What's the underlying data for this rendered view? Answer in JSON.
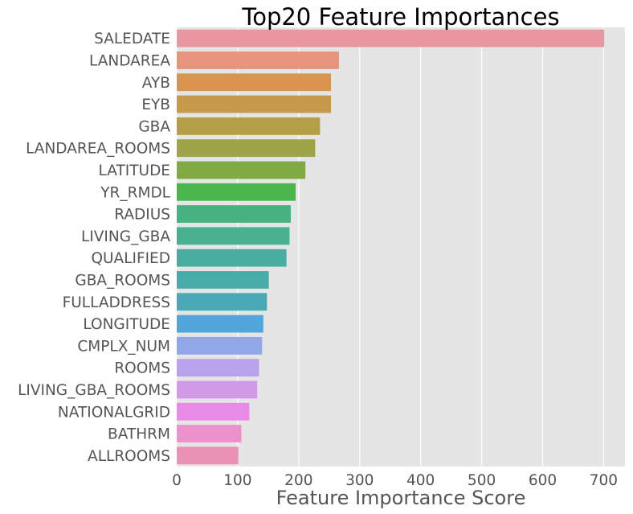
{
  "chart_data": {
    "type": "bar",
    "orientation": "horizontal",
    "title": "Top20 Feature Importances",
    "xlabel": "Feature Importance Score",
    "ylabel": "",
    "xlim": [
      0,
      735
    ],
    "xticks": [
      0,
      100,
      200,
      300,
      400,
      500,
      600,
      700
    ],
    "grid": true,
    "categories": [
      "SALEDATE",
      "LANDAREA",
      "AYB",
      "EYB",
      "GBA",
      "LANDAREA_ROOMS",
      "LATITUDE",
      "YR_RMDL",
      "RADIUS",
      "LIVING_GBA",
      "QUALIFIED",
      "GBA_ROOMS",
      "FULLADDRESS",
      "LONGITUDE",
      "CMPLX_NUM",
      "ROOMS",
      "LIVING_GBA_ROOMS",
      "NATIONALGRID",
      "BATHRM",
      "ALLROOMS"
    ],
    "values": [
      701,
      266,
      253,
      253,
      235,
      227,
      211,
      195,
      187,
      185,
      180,
      151,
      148,
      142,
      140,
      135,
      132,
      119,
      106,
      101
    ],
    "colors": [
      "#ea96a0",
      "#e6947c",
      "#d9954f",
      "#c59b4b",
      "#b29f48",
      "#9ea447",
      "#82aa43",
      "#4bb54e",
      "#48b382",
      "#47b192",
      "#49ae9f",
      "#4aaca9",
      "#4ba9b5",
      "#50a6d8",
      "#92a7e7",
      "#b8a2ec",
      "#d09ae8",
      "#e88be7",
      "#eb91cb",
      "#ea92b6"
    ],
    "background": "#e5e5e5",
    "gridColor": "#ffffff"
  }
}
